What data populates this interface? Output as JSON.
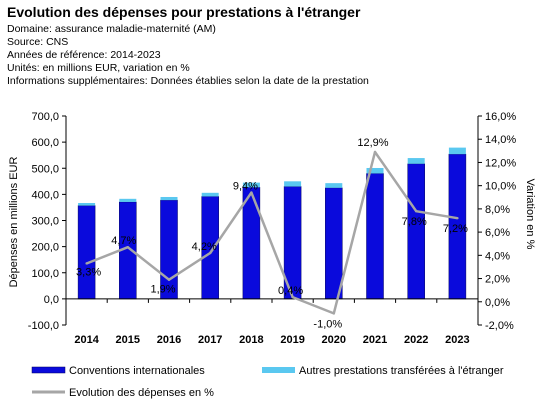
{
  "header": {
    "title": "Evolution des dépenses pour prestations à l'étranger",
    "domain": "Domaine: assurance maladie-maternité (AM)",
    "source": "Source: CNS",
    "years": "Années de référence: 2014-2023",
    "units": "Unités: en millions EUR, variation en %",
    "info": "Informations supplémentaires: Données établies selon la date de la prestation"
  },
  "chart_data": {
    "type": "bar",
    "categories": [
      "2014",
      "2015",
      "2016",
      "2017",
      "2018",
      "2019",
      "2020",
      "2021",
      "2022",
      "2023"
    ],
    "series": [
      {
        "name": "Conventions internationales",
        "kind": "bar",
        "axis": "left",
        "stack": "a",
        "color": "#0a0adc",
        "values": [
          357,
          371,
          378,
          392,
          427,
          430,
          425,
          480,
          517,
          554
        ]
      },
      {
        "name": "Autres prestations transférées à l'étranger",
        "kind": "bar",
        "axis": "left",
        "stack": "a",
        "color": "#5ac8f0",
        "values": [
          10,
          12,
          12,
          14,
          18,
          20,
          18,
          21,
          22,
          25
        ]
      },
      {
        "name": "Evolution des dépenses en %",
        "kind": "line",
        "axis": "right",
        "color": "#a6a6a6",
        "values": [
          3.3,
          4.7,
          1.9,
          4.2,
          9.4,
          0.4,
          -1.0,
          12.9,
          7.8,
          7.2
        ],
        "labels": [
          "3,3%",
          "4,7%",
          "1,9%",
          "4,2%",
          "9,4%",
          "0,4%",
          "-1,0%",
          "12,9%",
          "7,8%",
          "7,2%"
        ]
      }
    ],
    "ylabel": "Dépenses en millions EUR",
    "y2label": "Variation en %",
    "ylim": [
      -100,
      700
    ],
    "y2lim": [
      -2,
      16
    ],
    "yticks": [
      "-100,0",
      "0,0",
      "100,0",
      "200,0",
      "300,0",
      "400,0",
      "500,0",
      "600,0",
      "700,0"
    ],
    "y2ticks": [
      "-2,0%",
      "0,0%",
      "2,0%",
      "4,0%",
      "6,0%",
      "8,0%",
      "10,0%",
      "12,0%",
      "14,0%",
      "16,0%"
    ],
    "grid": false,
    "legend": "bottom"
  }
}
